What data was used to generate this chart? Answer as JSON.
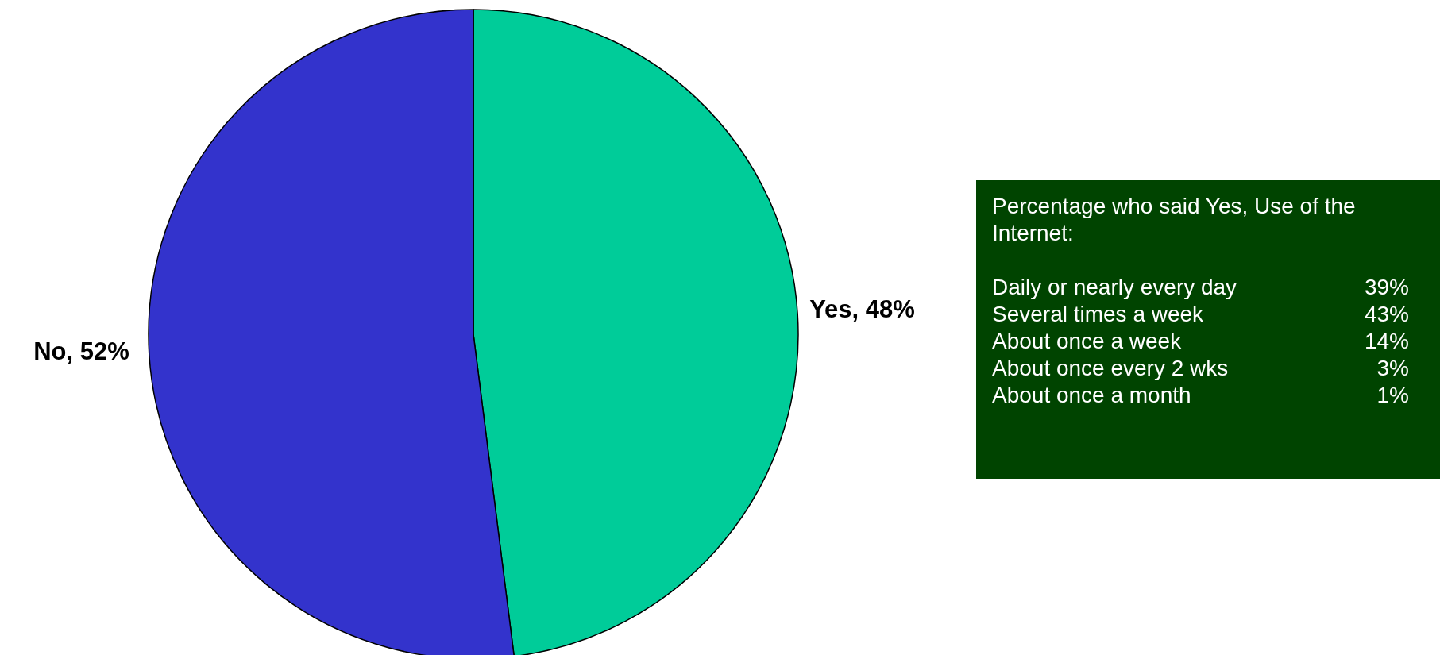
{
  "chart_data": {
    "type": "pie",
    "categories": [
      "Yes",
      "No"
    ],
    "values": [
      48,
      52
    ],
    "colors": [
      "#00cc99",
      "#3333cc"
    ],
    "value_labels": [
      "48%",
      "52%"
    ],
    "annotations": [
      "Percentage who said Yes, Use of the Internet:",
      "Daily or nearly every day 39%",
      "Several times a week 43%",
      "About once a week 14%",
      "About once every 2 wks 3%",
      "About once a month 1%"
    ]
  }
}
